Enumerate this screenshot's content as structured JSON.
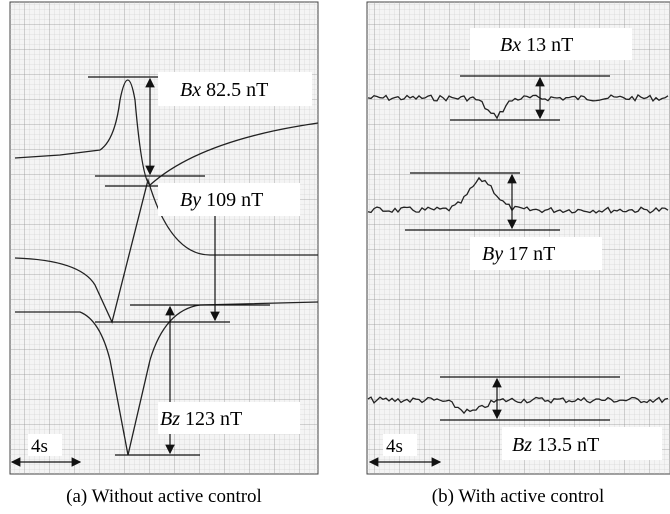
{
  "panel_a": {
    "bx": {
      "var": "Bx",
      "value": "82.5 nT"
    },
    "by": {
      "var": "By",
      "value": "109 nT"
    },
    "bz": {
      "var": "Bz",
      "value": "123 nT"
    },
    "scale": "4s",
    "caption": "(a) Without active control"
  },
  "panel_b": {
    "bx": {
      "var": "Bx",
      "value": "13 nT"
    },
    "by": {
      "var": "By",
      "value": "17 nT"
    },
    "bz": {
      "var": "Bz",
      "value": "13.5 nT"
    },
    "scale": "4s",
    "caption": "(b) With active control"
  }
}
